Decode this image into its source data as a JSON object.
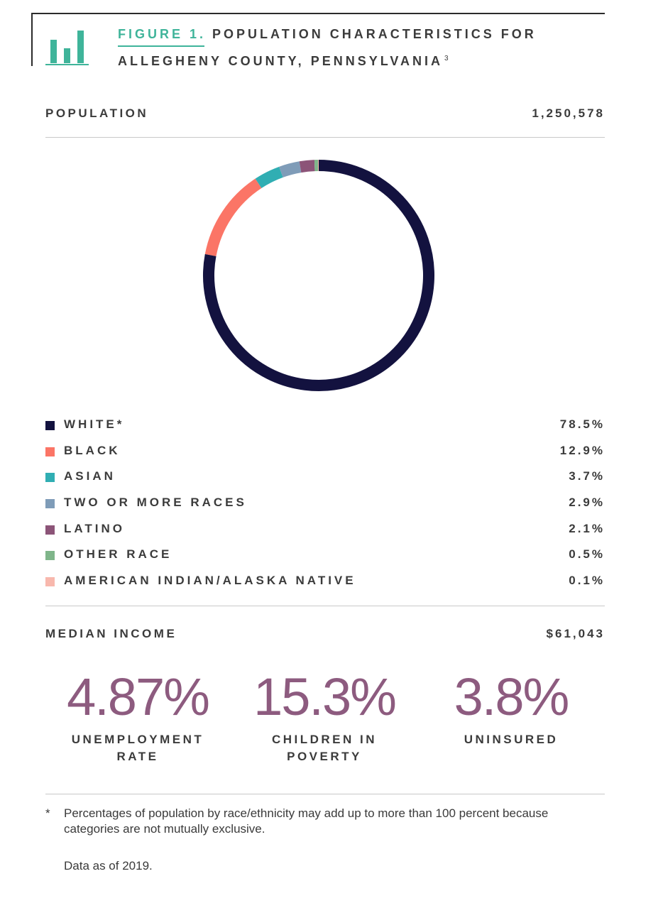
{
  "header": {
    "figure_label": "FIGURE 1.",
    "title_line1": "POPULATION CHARACTERISTICS FOR",
    "title_line2": "ALLEGHENY COUNTY, PENNSYLVANIA",
    "footnote_ref": "3",
    "icon": "bar-chart-icon",
    "accent_color": "#3fb49a"
  },
  "population": {
    "label": "POPULATION",
    "value": "1,250,578"
  },
  "chart_data": {
    "type": "pie",
    "variant": "donut",
    "categories": [
      "WHITE*",
      "BLACK",
      "ASIAN",
      "TWO OR MORE RACES",
      "LATINO",
      "OTHER RACE",
      "AMERICAN INDIAN/ALASKA NATIVE"
    ],
    "values": [
      78.5,
      12.9,
      3.7,
      2.9,
      2.1,
      0.5,
      0.1
    ],
    "value_labels": [
      "78.5%",
      "12.9%",
      "3.7%",
      "2.9%",
      "2.1%",
      "0.5%",
      "0.1%"
    ],
    "colors": [
      "#13123f",
      "#fb7566",
      "#30aeb3",
      "#7f9cb8",
      "#8c5478",
      "#7fb58a",
      "#f8b8ad"
    ],
    "legend_position": "bottom"
  },
  "median_income": {
    "label": "MEDIAN INCOME",
    "value": "$61,043"
  },
  "stats": [
    {
      "number": "4.87%",
      "label_line1": "UNEMPLOYMENT",
      "label_line2": "RATE"
    },
    {
      "number": "15.3%",
      "label_line1": "CHILDREN IN",
      "label_line2": "POVERTY"
    },
    {
      "number": "3.8%",
      "label_line1": "UNINSURED",
      "label_line2": ""
    }
  ],
  "footnote": {
    "marker": "*",
    "text": "Percentages of population by race/ethnicity may add up to more than 100 percent because categories are not mutually exclusive."
  },
  "data_note": "Data as of 2019."
}
